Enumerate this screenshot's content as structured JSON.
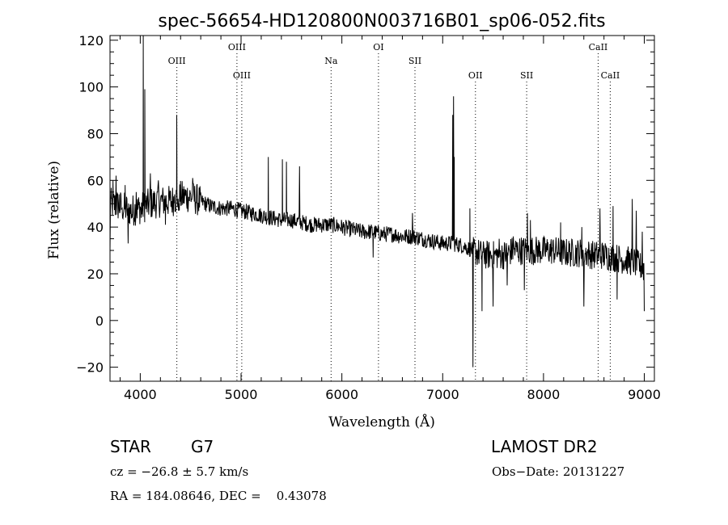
{
  "chart_data": {
    "type": "line",
    "title": "spec-56654-HD120800N003716B01_sp06-052.fits",
    "xlabel": "Wavelength (Å)",
    "ylabel": "Flux (relative)",
    "xlim": [
      3700,
      9100
    ],
    "ylim": [
      -26,
      122
    ],
    "xticks": [
      4000,
      5000,
      6000,
      7000,
      8000,
      9000
    ],
    "yticks": [
      -20,
      0,
      20,
      40,
      60,
      80,
      100,
      120
    ],
    "grid": false,
    "line_color": "#000000",
    "spectrum_anchors": {
      "x": [
        3700,
        3800,
        3900,
        4000,
        4100,
        4200,
        4300,
        4400,
        4500,
        4600,
        4700,
        4800,
        4900,
        5000,
        5100,
        5200,
        5300,
        5400,
        5500,
        5600,
        5700,
        5800,
        5900,
        6000,
        6100,
        6200,
        6300,
        6400,
        6500,
        6600,
        6700,
        6800,
        6900,
        7000,
        7100,
        7200,
        7300,
        7400,
        7500,
        7600,
        7700,
        7800,
        7900,
        8000,
        8100,
        8200,
        8300,
        8400,
        8500,
        8600,
        8700,
        8800,
        8900,
        9000
      ],
      "y": [
        50,
        49,
        47,
        48,
        50,
        51,
        51,
        53,
        53,
        51,
        49,
        48,
        48,
        47,
        46,
        45,
        44,
        43,
        43,
        42,
        41,
        41,
        41,
        40,
        39,
        38,
        38,
        37,
        37,
        36,
        36,
        35,
        34,
        33,
        33,
        32,
        30,
        28,
        28,
        28,
        30,
        30,
        30,
        30,
        30,
        29,
        29,
        29,
        28,
        28,
        27,
        26,
        25,
        22
      ]
    },
    "spectrum_features": {
      "x": [
        3700,
        3730,
        3760,
        3790,
        3820,
        3850,
        3880,
        3920,
        3960,
        4010,
        4030,
        4045,
        4100,
        4180,
        4250,
        4340,
        4362,
        4380,
        4520,
        5270,
        5410,
        5450,
        5580,
        6310,
        6700,
        7100,
        7108,
        7115,
        7250,
        7270,
        7300,
        7330,
        7390,
        7420,
        7500,
        7560,
        7640,
        7700,
        7810,
        7840,
        7870,
        8170,
        8380,
        8400,
        8560,
        8690,
        8730,
        8880,
        8920,
        8980,
        9000
      ],
      "y": [
        30,
        60,
        62,
        54,
        48,
        58,
        33,
        44,
        55,
        44,
        122,
        99,
        63,
        60,
        41,
        54,
        88,
        47,
        61,
        70,
        69,
        68,
        66,
        27,
        46,
        88,
        96,
        70,
        30,
        48,
        -20,
        30,
        4,
        31,
        6,
        35,
        15,
        36,
        13,
        46,
        43,
        42,
        40,
        6,
        48,
        49,
        9,
        52,
        47,
        38,
        4
      ]
    },
    "series": [
      {
        "noise_amp_blue": 7,
        "noise_amp_red": 3.5
      }
    ],
    "lines": [
      {
        "label": "OIII",
        "x": 4363,
        "row": "mid"
      },
      {
        "label": "OIII",
        "x": 4959,
        "row": "top"
      },
      {
        "label": "OIII",
        "x": 5007,
        "row": "low"
      },
      {
        "label": "Na",
        "x": 5893,
        "row": "mid"
      },
      {
        "label": "OI",
        "x": 6363,
        "row": "top"
      },
      {
        "label": "SII",
        "x": 6725,
        "row": "mid"
      },
      {
        "label": "OII",
        "x": 7325,
        "row": "low"
      },
      {
        "label": "SII",
        "x": 7833,
        "row": "low"
      },
      {
        "label": "CaII",
        "x": 8542,
        "row": "top"
      },
      {
        "label": "CaII",
        "x": 8662,
        "row": "low"
      }
    ]
  },
  "info": {
    "object": "STAR",
    "subclass": "G7",
    "survey": "LAMOST DR2",
    "cz": "cz = −26.8 ± 5.7 km/s",
    "obsdate": "Obs−Date: 20131227",
    "coords": "RA = 184.08646, DEC =    0.43078"
  }
}
